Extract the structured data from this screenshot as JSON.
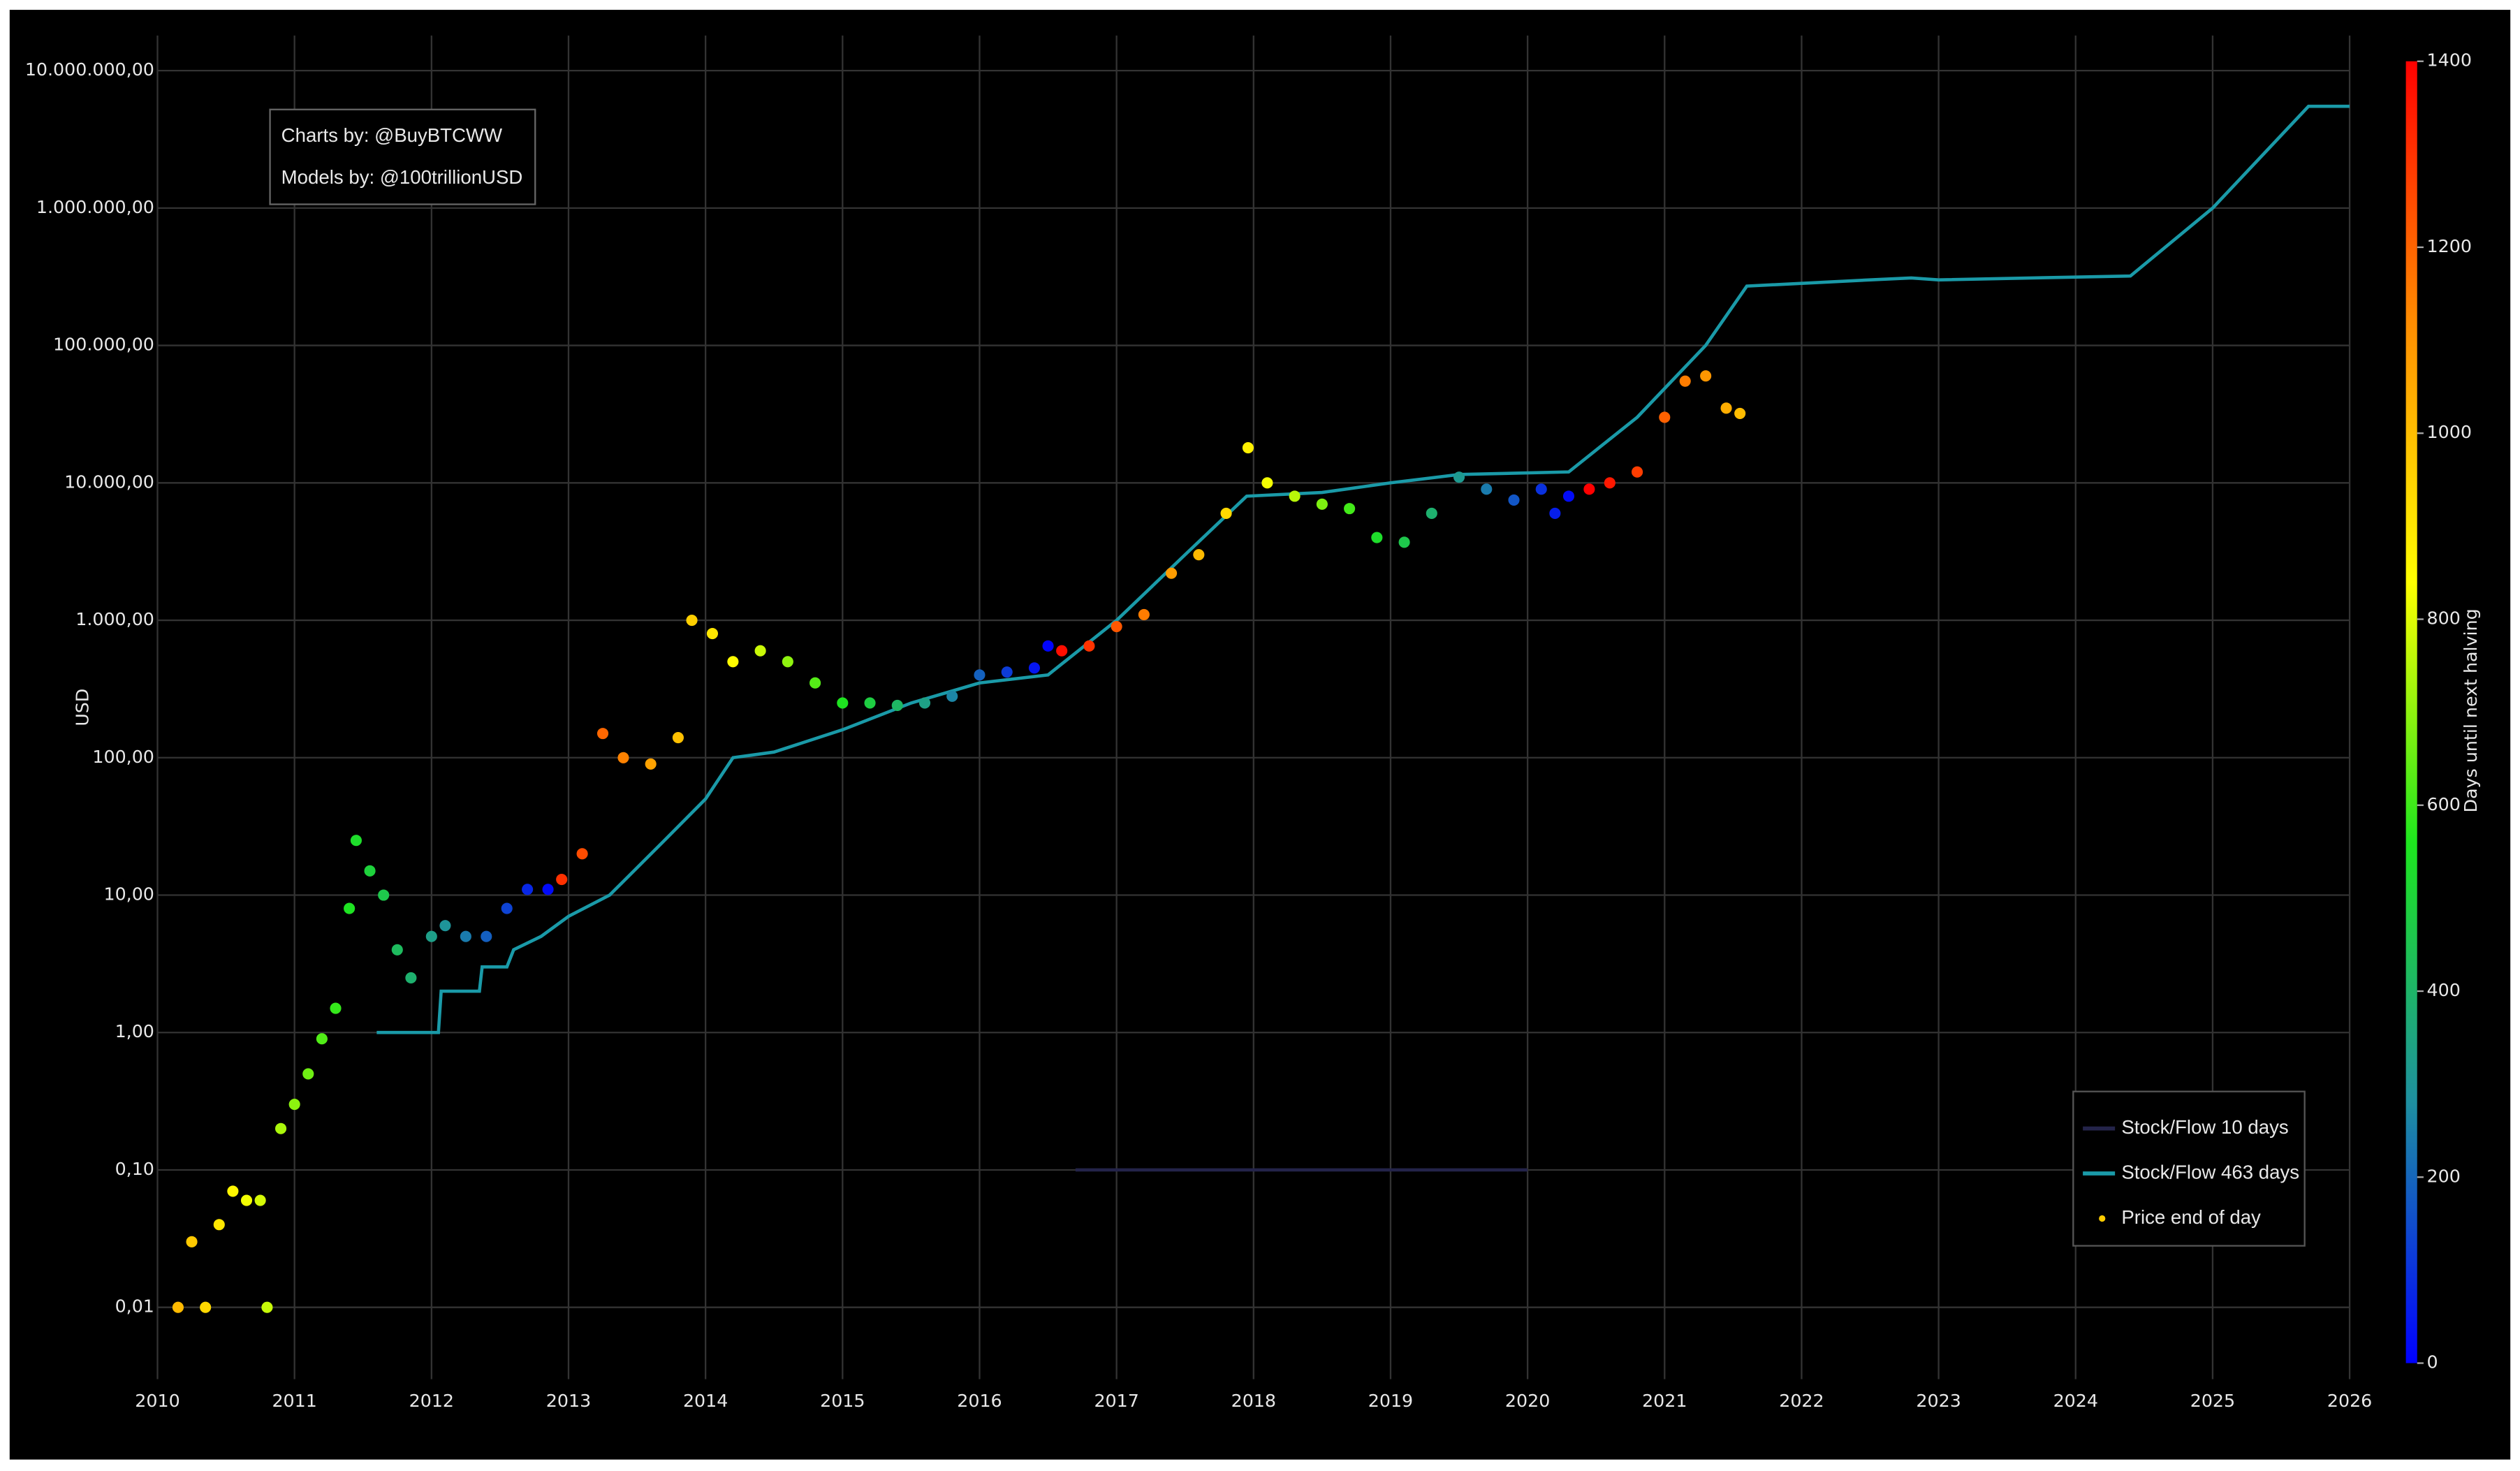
{
  "chart_data": {
    "type": "line",
    "y_label": "USD",
    "annotations": [
      "Charts by: @BuyBTCWW",
      "Models by: @100trillionUSD"
    ],
    "ylog": true,
    "grid": true,
    "legend": "lower right",
    "xlim": [
      2010,
      2026
    ],
    "xticks": [
      2010,
      2011,
      2012,
      2013,
      2014,
      2015,
      2016,
      2017,
      2018,
      2019,
      2020,
      2021,
      2022,
      2023,
      2024,
      2025,
      2026
    ],
    "ylim": [
      0.003,
      18000000
    ],
    "yticks": [
      {
        "value": 0.01,
        "label": "0,01"
      },
      {
        "value": 0.1,
        "label": "0,10"
      },
      {
        "value": 1,
        "label": "1,00"
      },
      {
        "value": 10,
        "label": "10,00"
      },
      {
        "value": 100,
        "label": "100,00"
      },
      {
        "value": 1000,
        "label": "1.000,00"
      },
      {
        "value": 10000,
        "label": "10.000,00"
      },
      {
        "value": 100000,
        "label": "100.000,00"
      },
      {
        "value": 1000000,
        "label": "1.000.000,00"
      },
      {
        "value": 10000000,
        "label": "10.000.000,00"
      }
    ],
    "colorbar": {
      "label": "Days until next halving",
      "clim": [
        0,
        1400
      ],
      "cticks": [
        0,
        200,
        400,
        600,
        800,
        1000,
        1200,
        1400
      ],
      "colormap": [
        "#0000ff",
        "#1e8fa0",
        "#1ee61e",
        "#ffff00",
        "#ff8c00",
        "#ff0000"
      ]
    },
    "series": [
      {
        "name": "Stock/Flow 10 days",
        "type": "line",
        "color": "#24244a",
        "x": [
          2016.7,
          2017.5,
          2018.5,
          2019.5,
          2020.0
        ],
        "values": [
          0.1,
          0.1,
          0.1,
          0.1,
          0.1
        ]
      },
      {
        "name": "Stock/Flow 463 days",
        "type": "line",
        "color": "#1a9aa8",
        "x": [
          2011.6,
          2012.05,
          2012.07,
          2012.35,
          2012.37,
          2012.55,
          2012.6,
          2012.8,
          2013.0,
          2013.3,
          2013.7,
          2014.0,
          2014.2,
          2014.5,
          2015.0,
          2015.5,
          2016.0,
          2016.5,
          2017.0,
          2017.5,
          2017.95,
          2018.5,
          2019.0,
          2019.5,
          2020.3,
          2020.8,
          2021.3,
          2021.6,
          2022.5,
          2022.8,
          2023.0,
          2024.4,
          2025.0,
          2025.7,
          2026.0
        ],
        "values": [
          1,
          1,
          2,
          2,
          3,
          3,
          4,
          5,
          7,
          10,
          25,
          50,
          100,
          110,
          160,
          250,
          350,
          400,
          1000,
          3000,
          8000,
          8500,
          10000,
          11500,
          12000,
          30000,
          100000,
          270000,
          300000,
          310000,
          300000,
          320000,
          1000000,
          5500000,
          5500000
        ]
      },
      {
        "name": "Price end of day",
        "type": "scatter",
        "color": "#ffcc00",
        "x": [
          2010.15,
          2010.25,
          2010.35,
          2010.45,
          2010.55,
          2010.65,
          2010.75,
          2010.8,
          2010.9,
          2011.0,
          2011.1,
          2011.2,
          2011.3,
          2011.4,
          2011.45,
          2011.55,
          2011.65,
          2011.75,
          2011.85,
          2012.0,
          2012.1,
          2012.25,
          2012.4,
          2012.55,
          2012.7,
          2012.85,
          2012.95,
          2013.1,
          2013.25,
          2013.4,
          2013.6,
          2013.8,
          2013.9,
          2014.05,
          2014.2,
          2014.4,
          2014.6,
          2014.8,
          2015.0,
          2015.2,
          2015.4,
          2015.6,
          2015.8,
          2016.0,
          2016.2,
          2016.4,
          2016.5,
          2016.6,
          2016.8,
          2017.0,
          2017.2,
          2017.4,
          2017.6,
          2017.8,
          2017.96,
          2018.1,
          2018.3,
          2018.5,
          2018.7,
          2018.9,
          2019.1,
          2019.3,
          2019.5,
          2019.7,
          2019.9,
          2020.1,
          2020.2,
          2020.3,
          2020.45,
          2020.6,
          2020.8,
          2021.0,
          2021.15,
          2021.3,
          2021.45,
          2021.55
        ],
        "values": [
          0.01,
          0.03,
          0.01,
          0.04,
          0.07,
          0.06,
          0.06,
          0.01,
          0.2,
          0.3,
          0.5,
          0.9,
          1.5,
          8,
          25,
          15,
          10,
          4,
          2.5,
          5,
          6,
          5,
          5,
          8,
          11,
          11,
          13,
          20,
          150,
          100,
          90,
          140,
          1000,
          800,
          500,
          600,
          500,
          350,
          250,
          250,
          240,
          250,
          280,
          400,
          420,
          450,
          650,
          600,
          650,
          900,
          1100,
          2200,
          3000,
          6000,
          18000,
          10000,
          8000,
          7000,
          6500,
          4000,
          3700,
          6000,
          11000,
          9000,
          7500,
          9000,
          6000,
          8000,
          9000,
          10000,
          12000,
          30000,
          55000,
          60000,
          35000,
          32000
        ],
        "color_values": [
          1007,
          971,
          934,
          898,
          861,
          825,
          788,
          770,
          734,
          697,
          661,
          624,
          588,
          551,
          533,
          496,
          460,
          423,
          387,
          332,
          296,
          241,
          186,
          131,
          77,
          22,
          1303,
          1248,
          1194,
          1139,
          1066,
          993,
          956,
          901,
          847,
          774,
          701,
          628,
          555,
          482,
          409,
          336,
          263,
          190,
          117,
          44,
          7,
          1372,
          1299,
          1226,
          1153,
          1080,
          1008,
          935,
          876,
          825,
          752,
          679,
          606,
          533,
          460,
          387,
          314,
          241,
          168,
          95,
          58,
          22,
          1405,
          1351,
          1278,
          1205,
          1150,
          1095,
          1040,
          1004
        ]
      }
    ]
  }
}
